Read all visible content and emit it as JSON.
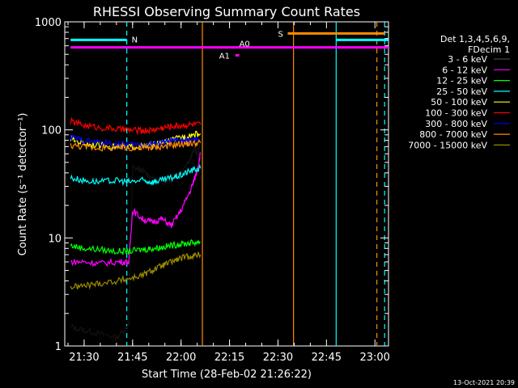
{
  "chart_data": {
    "type": "line",
    "title": "RHESSI Observing Summary Count Rates",
    "xlabel": "Start Time (28-Feb-02 21:26:22)",
    "ylabel": "Count Rate (s⁻¹ detector⁻¹)",
    "yscale": "log",
    "ylim": [
      1,
      1000
    ],
    "xlim_minutes": [
      21.4,
      23.07
    ],
    "x_ticks": [
      "21:30",
      "21:45",
      "22:00",
      "22:15",
      "22:30",
      "22:45",
      "23:00"
    ],
    "y_ticks": [
      "1",
      "10",
      "100",
      "1000"
    ],
    "legend_title": [
      "Det 1,3,4,5,6,9,",
      "FDecim 1"
    ],
    "legend_position": "right",
    "footer_date": "13-Oct-2021 20:39",
    "series": [
      {
        "name": "3 - 6 keV",
        "color": "#000000",
        "points": [
          [
            21.43,
            1.5
          ],
          [
            21.5,
            1.4
          ],
          [
            21.58,
            1.3
          ],
          [
            21.67,
            1.2
          ],
          [
            21.73,
            1.6
          ],
          [
            21.75,
            45
          ],
          [
            21.8,
            42
          ],
          [
            21.85,
            36
          ],
          [
            21.9,
            33
          ],
          [
            21.95,
            34
          ],
          [
            22.0,
            42
          ],
          [
            22.05,
            55
          ],
          [
            22.07,
            70
          ],
          [
            22.08,
            60
          ],
          [
            22.1,
            75
          ]
        ]
      },
      {
        "name": "6 - 12 keV",
        "color": "#ff00ff",
        "points": [
          [
            21.43,
            6
          ],
          [
            21.5,
            6
          ],
          [
            21.58,
            5.8
          ],
          [
            21.67,
            6
          ],
          [
            21.73,
            6
          ],
          [
            21.75,
            18
          ],
          [
            21.8,
            15
          ],
          [
            21.85,
            14
          ],
          [
            21.9,
            15
          ],
          [
            21.95,
            13
          ],
          [
            22.0,
            18
          ],
          [
            22.05,
            28
          ],
          [
            22.08,
            40
          ],
          [
            22.1,
            60
          ]
        ]
      },
      {
        "name": "12 - 25 keV",
        "color": "#00ff00",
        "points": [
          [
            21.43,
            8.5
          ],
          [
            21.5,
            8
          ],
          [
            21.58,
            7.8
          ],
          [
            21.67,
            7.5
          ],
          [
            21.73,
            7.5
          ],
          [
            21.8,
            7.8
          ],
          [
            21.85,
            8
          ],
          [
            21.9,
            8.2
          ],
          [
            21.95,
            8.5
          ],
          [
            22.0,
            8.8
          ],
          [
            22.05,
            9
          ],
          [
            22.1,
            9.2
          ]
        ]
      },
      {
        "name": "25 - 50 keV",
        "color": "#00ffff",
        "points": [
          [
            21.43,
            36
          ],
          [
            21.5,
            34
          ],
          [
            21.58,
            33
          ],
          [
            21.67,
            34
          ],
          [
            21.73,
            33
          ],
          [
            21.8,
            34
          ],
          [
            21.85,
            33
          ],
          [
            21.9,
            34
          ],
          [
            21.95,
            36
          ],
          [
            22.0,
            38
          ],
          [
            22.05,
            42
          ],
          [
            22.1,
            44
          ]
        ]
      },
      {
        "name": "50 - 100 keV",
        "color": "#ffff00",
        "points": [
          [
            21.43,
            82
          ],
          [
            21.5,
            75
          ],
          [
            21.58,
            72
          ],
          [
            21.67,
            70
          ],
          [
            21.73,
            70
          ],
          [
            21.8,
            70
          ],
          [
            21.85,
            72
          ],
          [
            21.9,
            76
          ],
          [
            21.95,
            80
          ],
          [
            22.0,
            85
          ],
          [
            22.05,
            90
          ],
          [
            22.1,
            92
          ]
        ]
      },
      {
        "name": "100 - 300 keV",
        "color": "#ff0000",
        "points": [
          [
            21.43,
            120
          ],
          [
            21.5,
            110
          ],
          [
            21.58,
            105
          ],
          [
            21.67,
            102
          ],
          [
            21.73,
            100
          ],
          [
            21.8,
            98
          ],
          [
            21.85,
            100
          ],
          [
            21.9,
            104
          ],
          [
            21.95,
            108
          ],
          [
            22.0,
            110
          ],
          [
            22.05,
            112
          ],
          [
            22.1,
            112
          ]
        ]
      },
      {
        "name": "300 - 800 keV",
        "color": "#0000ff",
        "points": [
          [
            21.43,
            85
          ],
          [
            21.5,
            80
          ],
          [
            21.58,
            76
          ],
          [
            21.67,
            74
          ],
          [
            21.73,
            73
          ],
          [
            21.8,
            73
          ],
          [
            21.85,
            74
          ],
          [
            21.9,
            76
          ],
          [
            21.95,
            78
          ],
          [
            22.0,
            80
          ],
          [
            22.05,
            80
          ],
          [
            22.1,
            80
          ]
        ]
      },
      {
        "name": "800 - 7000 keV",
        "color": "#ff8c00",
        "points": [
          [
            21.43,
            72
          ],
          [
            21.5,
            70
          ],
          [
            21.58,
            68
          ],
          [
            21.67,
            68
          ],
          [
            21.73,
            68
          ],
          [
            21.8,
            68
          ],
          [
            21.85,
            69
          ],
          [
            21.9,
            70
          ],
          [
            21.95,
            72
          ],
          [
            22.0,
            74
          ],
          [
            22.05,
            75
          ],
          [
            22.1,
            76
          ]
        ]
      },
      {
        "name": "7000 - 15000 keV",
        "color": "#9a8a00",
        "points": [
          [
            21.43,
            3.5
          ],
          [
            21.5,
            3.6
          ],
          [
            21.58,
            3.8
          ],
          [
            21.67,
            4
          ],
          [
            21.73,
            4.2
          ],
          [
            21.8,
            4.5
          ],
          [
            21.85,
            5
          ],
          [
            21.9,
            5.5
          ],
          [
            21.95,
            6
          ],
          [
            22.0,
            6.5
          ],
          [
            22.05,
            6.8
          ],
          [
            22.1,
            7
          ]
        ]
      }
    ],
    "annotations": [
      {
        "label": "N",
        "color": "#00ffff",
        "y": 680,
        "x_start": 21.43,
        "x_end": 21.72
      },
      {
        "label": "S",
        "color": "#ff8c00",
        "y": 780,
        "x_start": 22.55,
        "x_end": 23.05
      },
      {
        "label": "",
        "color": "#00ffff",
        "y": 680,
        "x_start": 22.8,
        "x_end": 23.07
      },
      {
        "label": "A0",
        "color": "#ff00ff",
        "y": 580,
        "x_start": 21.43,
        "x_end": 23.07
      },
      {
        "label": "A1",
        "color": "#ff00ff",
        "y": 490,
        "x_start": 22.28,
        "x_end": 22.3
      }
    ],
    "vertical_lines": [
      {
        "x": 21.72,
        "color": "#00ffff",
        "style": "dashed"
      },
      {
        "x": 22.11,
        "color": "#ff8c00",
        "style": "solid"
      },
      {
        "x": 22.58,
        "color": "#ff8c00",
        "style": "solid"
      },
      {
        "x": 22.8,
        "color": "#00ffff",
        "style": "solid"
      },
      {
        "x": 23.01,
        "color": "#ff8c00",
        "style": "dashed"
      },
      {
        "x": 23.05,
        "color": "#00ffff",
        "style": "dashed"
      }
    ]
  }
}
